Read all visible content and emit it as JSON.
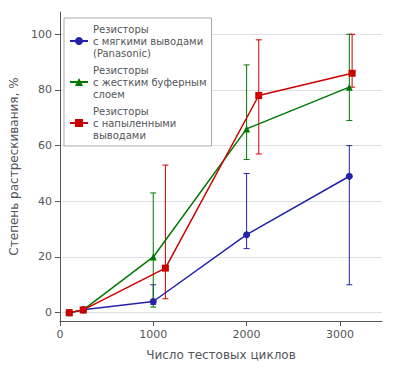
{
  "chart_data": {
    "type": "line",
    "xlabel": "Число тестовых циклов",
    "ylabel": "Степень растрескивания, %",
    "xlim": [
      0,
      3450
    ],
    "ylim": [
      -3,
      108
    ],
    "xticks": [
      0,
      1000,
      2000,
      3000
    ],
    "yticks": [
      0,
      20,
      40,
      60,
      80,
      100
    ],
    "grid": "y",
    "legend": "upper left",
    "series": [
      {
        "name": "Резисторы\nс мягкими выводами\n(Panasonic)",
        "color": "#2222aa",
        "marker": "circle",
        "x": [
          100,
          250,
          1000,
          2000,
          3100
        ],
        "values": [
          0,
          1,
          4,
          28,
          49
        ],
        "yerr_lo": [
          0,
          0.5,
          1,
          5,
          39
        ],
        "yerr_hi": [
          0,
          0.5,
          6,
          22,
          11
        ]
      },
      {
        "name": "Резисторы\nс жестким буферным\nслоем",
        "color": "#007700",
        "marker": "triangle",
        "x": [
          100,
          250,
          1000,
          2000,
          3100
        ],
        "values": [
          0,
          1,
          20,
          66,
          81
        ],
        "yerr_lo": [
          0,
          0.5,
          18,
          11,
          12
        ],
        "yerr_hi": [
          0,
          0.5,
          23,
          23,
          19
        ]
      },
      {
        "name": "Резисторы\nс напыленными\nвыводами",
        "color": "#cc0000",
        "marker": "square",
        "x": [
          100,
          250,
          1130,
          2130,
          3130
        ],
        "values": [
          0,
          1,
          16,
          78,
          86
        ],
        "yerr_lo": [
          0,
          0.5,
          11,
          21,
          5
        ],
        "yerr_hi": [
          0,
          0.5,
          37,
          20,
          14
        ]
      }
    ]
  }
}
